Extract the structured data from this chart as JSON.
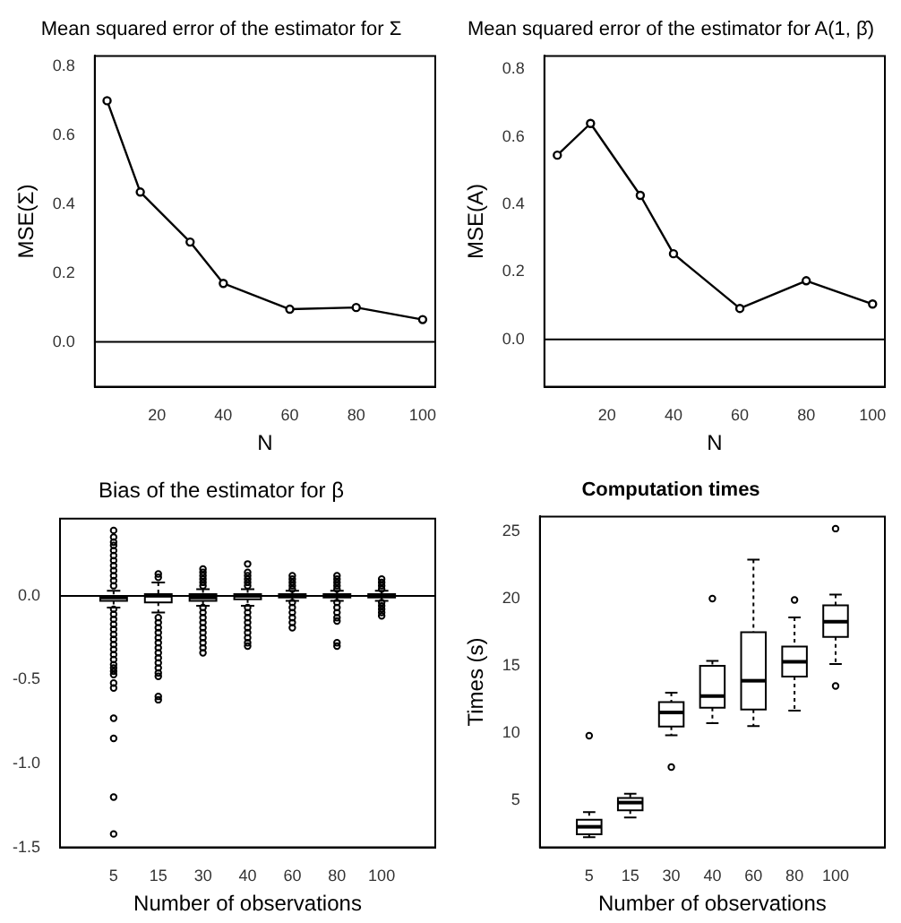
{
  "chart_data": [
    {
      "type": "line",
      "title": "Mean squared error of the estimator for Σ",
      "xlabel": "N",
      "ylabel": "MSE(Σ)",
      "x": [
        5,
        15,
        30,
        40,
        60,
        80,
        100
      ],
      "series": [
        {
          "color": "#000000",
          "values": [
            0.7,
            0.435,
            0.29,
            0.17,
            0.095,
            0.1,
            0.065
          ]
        }
      ],
      "xlim": [
        1.3,
        103.8
      ],
      "xticks": [
        20,
        40,
        60,
        80,
        100
      ],
      "ylim": [
        -0.13,
        0.83
      ],
      "yticks": [
        {
          "value": 0,
          "label": "0.0"
        },
        {
          "value": 0.2,
          "label": "0.2"
        },
        {
          "value": 0.4,
          "label": "0.4"
        },
        {
          "value": 0.6,
          "label": "0.6"
        },
        {
          "value": 0.8,
          "label": "0.8"
        }
      ],
      "ref_lines": [
        {
          "axis": "y",
          "value": 0,
          "color": "#000000"
        }
      ],
      "marker": "circle",
      "grid": false,
      "legend": false
    },
    {
      "type": "line",
      "title": "Mean squared error of the estimator for A(1, β̂)",
      "xlabel": "N",
      "ylabel": "MSE(A)",
      "x": [
        5,
        15,
        30,
        40,
        60,
        80,
        100
      ],
      "series": [
        {
          "color": "#000000",
          "values": [
            0.546,
            0.64,
            0.427,
            0.254,
            0.092,
            0.174,
            0.105
          ]
        }
      ],
      "xlim": [
        1.1,
        103.7
      ],
      "xticks": [
        20,
        40,
        60,
        80,
        100
      ],
      "ylim": [
        -0.14,
        0.84
      ],
      "yticks": [
        {
          "value": 0,
          "label": "0.0"
        },
        {
          "value": 0.2,
          "label": "0.2"
        },
        {
          "value": 0.4,
          "label": "0.4"
        },
        {
          "value": 0.6,
          "label": "0.6"
        },
        {
          "value": 0.8,
          "label": "0.8"
        }
      ],
      "ref_lines": [
        {
          "axis": "y",
          "value": 0,
          "color": "#000000"
        }
      ],
      "marker": "circle",
      "grid": false,
      "legend": false
    },
    {
      "type": "box",
      "title": "Bias of the estimator for β",
      "xlabel": "Number of observations",
      "categories": [
        "5",
        "15",
        "30",
        "40",
        "60",
        "80",
        "100"
      ],
      "boxes": [
        {
          "low": -0.07,
          "q1": -0.03,
          "median": -0.01,
          "q3": 0.0,
          "high": 0.03,
          "outliers": [
            0.39,
            0.35,
            0.32,
            0.3,
            0.27,
            0.24,
            0.21,
            0.18,
            0.15,
            0.12,
            0.09,
            0.06,
            -0.08,
            -0.11,
            -0.14,
            -0.17,
            -0.2,
            -0.23,
            -0.26,
            -0.29,
            -0.32,
            -0.35,
            -0.38,
            -0.41,
            -0.43,
            -0.45,
            -0.47,
            -0.52,
            -0.55,
            -0.73,
            -0.85,
            -1.2,
            -1.42
          ]
        },
        {
          "low": -0.1,
          "q1": -0.04,
          "median": 0.0,
          "q3": 0.01,
          "high": 0.08,
          "outliers": [
            0.13,
            0.11,
            -0.13,
            -0.16,
            -0.19,
            -0.22,
            -0.25,
            -0.28,
            -0.31,
            -0.34,
            -0.37,
            -0.4,
            -0.43,
            -0.46,
            -0.48,
            -0.6,
            -0.62
          ]
        },
        {
          "low": -0.06,
          "q1": -0.03,
          "median": -0.01,
          "q3": 0.01,
          "high": 0.04,
          "outliers": [
            0.16,
            0.14,
            0.12,
            0.1,
            0.08,
            0.06,
            -0.07,
            -0.1,
            -0.13,
            -0.16,
            -0.19,
            -0.22,
            -0.25,
            -0.28,
            -0.31,
            -0.34
          ]
        },
        {
          "low": -0.06,
          "q1": -0.02,
          "median": 0.0,
          "q3": 0.01,
          "high": 0.04,
          "outliers": [
            0.19,
            0.14,
            0.12,
            0.1,
            0.08,
            0.06,
            -0.07,
            -0.1,
            -0.13,
            -0.16,
            -0.19,
            -0.22,
            -0.25,
            -0.28,
            -0.3
          ]
        },
        {
          "low": -0.03,
          "q1": -0.01,
          "median": 0.0,
          "q3": 0.01,
          "high": 0.03,
          "outliers": [
            0.12,
            0.1,
            0.08,
            0.06,
            0.04,
            -0.04,
            -0.07,
            -0.1,
            -0.13,
            -0.16,
            -0.19
          ]
        },
        {
          "low": -0.03,
          "q1": -0.01,
          "median": 0.0,
          "q3": 0.01,
          "high": 0.03,
          "outliers": [
            0.12,
            0.1,
            0.08,
            0.06,
            0.04,
            -0.04,
            -0.07,
            -0.1,
            -0.13,
            -0.15,
            -0.28,
            -0.3
          ]
        },
        {
          "low": -0.03,
          "q1": -0.01,
          "median": 0.0,
          "q3": 0.01,
          "high": 0.03,
          "outliers": [
            0.1,
            0.08,
            0.06,
            0.04,
            -0.04,
            -0.06,
            -0.08,
            -0.1,
            -0.12
          ]
        }
      ],
      "ylim": [
        -1.5,
        0.46
      ],
      "yticks": [
        {
          "value": 0,
          "label": "0.0"
        },
        {
          "value": -0.5,
          "label": "-0.5"
        },
        {
          "value": -1,
          "label": "-1.0"
        },
        {
          "value": -1.5,
          "label": "-1.5"
        }
      ],
      "ref_lines": [
        {
          "axis": "y",
          "value": 0,
          "color": "#000000"
        }
      ],
      "grid": false,
      "legend": false
    },
    {
      "type": "box",
      "title": "Computation times",
      "xlabel": "Number of observations",
      "ylabel": "Times (s)",
      "categories": [
        "5",
        "15",
        "30",
        "40",
        "60",
        "80",
        "100"
      ],
      "boxes": [
        {
          "low": 2.25,
          "q1": 2.47,
          "median": 3.03,
          "q3": 3.56,
          "high": 4.13,
          "outliers": [
            9.8
          ]
        },
        {
          "low": 3.73,
          "q1": 4.26,
          "median": 4.83,
          "q3": 5.17,
          "high": 5.48
        },
        {
          "low": 9.83,
          "q1": 10.48,
          "median": 11.53,
          "q3": 12.3,
          "high": 13.0,
          "outliers": [
            7.47
          ]
        },
        {
          "low": 10.74,
          "q1": 11.88,
          "median": 12.75,
          "q3": 15.0,
          "high": 15.37,
          "outliers": [
            20.0
          ]
        },
        {
          "low": 10.52,
          "q1": 11.75,
          "median": 13.89,
          "q3": 17.5,
          "high": 22.9
        },
        {
          "low": 11.66,
          "q1": 14.2,
          "median": 15.3,
          "q3": 16.44,
          "high": 18.6,
          "outliers": [
            19.9
          ]
        },
        {
          "low": 15.13,
          "q1": 17.14,
          "median": 18.28,
          "q3": 19.5,
          "high": 20.3,
          "outliers": [
            25.2,
            13.5
          ]
        }
      ],
      "ylim": [
        1.5,
        26.1
      ],
      "yticks": [
        5,
        10,
        15,
        20,
        25
      ],
      "grid": false,
      "legend": false
    }
  ]
}
